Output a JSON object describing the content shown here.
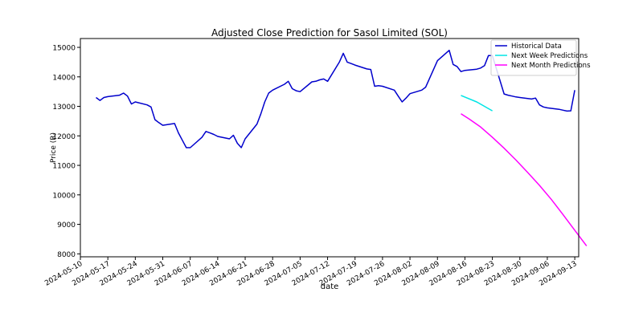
{
  "chart_data": {
    "type": "line",
    "title": "Adjusted Close Prediction for Sasol Limited (SOL)",
    "xlabel": "date",
    "ylabel": "Price (R)",
    "xlim": [
      "2024-05-10",
      "2024-09-14"
    ],
    "ylim": [
      7900,
      15300
    ],
    "x_ticks": [
      "2024-05-10",
      "2024-05-17",
      "2024-05-24",
      "2024-05-31",
      "2024-06-07",
      "2024-06-14",
      "2024-06-21",
      "2024-06-28",
      "2024-07-05",
      "2024-07-12",
      "2024-07-19",
      "2024-07-26",
      "2024-08-02",
      "2024-08-09",
      "2024-08-16",
      "2024-08-23",
      "2024-08-30",
      "2024-09-06",
      "2024-09-13"
    ],
    "y_ticks": [
      8000,
      9000,
      10000,
      11000,
      12000,
      13000,
      14000,
      15000
    ],
    "legend_position": "top-right",
    "grid": false,
    "series": [
      {
        "name": "Historical Data",
        "color": "#0000cc",
        "points": [
          [
            "2024-05-14",
            13300
          ],
          [
            "2024-05-15",
            13200
          ],
          [
            "2024-05-16",
            13300
          ],
          [
            "2024-05-17",
            13330
          ],
          [
            "2024-05-20",
            13380
          ],
          [
            "2024-05-21",
            13450
          ],
          [
            "2024-05-22",
            13350
          ],
          [
            "2024-05-23",
            13080
          ],
          [
            "2024-05-24",
            13150
          ],
          [
            "2024-05-27",
            13050
          ],
          [
            "2024-05-28",
            12980
          ],
          [
            "2024-05-29",
            12550
          ],
          [
            "2024-05-30",
            12450
          ],
          [
            "2024-05-31",
            12360
          ],
          [
            "2024-06-03",
            12420
          ],
          [
            "2024-06-04",
            12100
          ],
          [
            "2024-06-05",
            11850
          ],
          [
            "2024-06-06",
            11600
          ],
          [
            "2024-06-07",
            11600
          ],
          [
            "2024-06-10",
            11950
          ],
          [
            "2024-06-11",
            12150
          ],
          [
            "2024-06-12",
            12100
          ],
          [
            "2024-06-13",
            12050
          ],
          [
            "2024-06-14",
            11980
          ],
          [
            "2024-06-17",
            11900
          ],
          [
            "2024-06-18",
            12020
          ],
          [
            "2024-06-19",
            11750
          ],
          [
            "2024-06-20",
            11600
          ],
          [
            "2024-06-21",
            11900
          ],
          [
            "2024-06-24",
            12400
          ],
          [
            "2024-06-25",
            12750
          ],
          [
            "2024-06-26",
            13150
          ],
          [
            "2024-06-27",
            13450
          ],
          [
            "2024-06-28",
            13550
          ],
          [
            "2024-07-01",
            13750
          ],
          [
            "2024-07-02",
            13850
          ],
          [
            "2024-07-03",
            13600
          ],
          [
            "2024-07-04",
            13530
          ],
          [
            "2024-07-05",
            13500
          ],
          [
            "2024-07-08",
            13830
          ],
          [
            "2024-07-09",
            13850
          ],
          [
            "2024-07-10",
            13900
          ],
          [
            "2024-07-11",
            13930
          ],
          [
            "2024-07-12",
            13850
          ],
          [
            "2024-07-15",
            14500
          ],
          [
            "2024-07-16",
            14800
          ],
          [
            "2024-07-17",
            14500
          ],
          [
            "2024-07-18",
            14450
          ],
          [
            "2024-07-19",
            14400
          ],
          [
            "2024-07-22",
            14270
          ],
          [
            "2024-07-23",
            14250
          ],
          [
            "2024-07-24",
            13680
          ],
          [
            "2024-07-25",
            13700
          ],
          [
            "2024-07-26",
            13680
          ],
          [
            "2024-07-29",
            13550
          ],
          [
            "2024-07-30",
            13350
          ],
          [
            "2024-07-31",
            13150
          ],
          [
            "2024-08-01",
            13280
          ],
          [
            "2024-08-02",
            13430
          ],
          [
            "2024-08-05",
            13550
          ],
          [
            "2024-08-06",
            13650
          ],
          [
            "2024-08-07",
            13950
          ],
          [
            "2024-08-08",
            14250
          ],
          [
            "2024-08-09",
            14550
          ],
          [
            "2024-08-12",
            14900
          ],
          [
            "2024-08-13",
            14420
          ],
          [
            "2024-08-14",
            14350
          ],
          [
            "2024-08-15",
            14180
          ],
          [
            "2024-08-16",
            14220
          ],
          [
            "2024-08-19",
            14260
          ],
          [
            "2024-08-20",
            14300
          ],
          [
            "2024-08-21",
            14380
          ],
          [
            "2024-08-22",
            14720
          ],
          [
            "2024-08-23",
            14720
          ],
          [
            "2024-08-26",
            13420
          ],
          [
            "2024-08-27",
            13380
          ],
          [
            "2024-08-28",
            13350
          ],
          [
            "2024-08-29",
            13320
          ],
          [
            "2024-08-30",
            13300
          ],
          [
            "2024-09-02",
            13250
          ],
          [
            "2024-09-03",
            13280
          ],
          [
            "2024-09-04",
            13050
          ],
          [
            "2024-09-05",
            12980
          ],
          [
            "2024-09-06",
            12950
          ],
          [
            "2024-09-09",
            12900
          ],
          [
            "2024-09-10",
            12870
          ],
          [
            "2024-09-11",
            12840
          ],
          [
            "2024-09-12",
            12850
          ],
          [
            "2024-09-13",
            13550
          ]
        ]
      },
      {
        "name": "Next Week Predictions",
        "color": "#00e5e5",
        "points": [
          [
            "2024-08-15",
            13370
          ],
          [
            "2024-08-19",
            13150
          ],
          [
            "2024-08-23",
            12850
          ]
        ]
      },
      {
        "name": "Next Month Predictions",
        "color": "#ff00ff",
        "points": [
          [
            "2024-08-15",
            12750
          ],
          [
            "2024-08-17",
            12580
          ],
          [
            "2024-08-20",
            12300
          ],
          [
            "2024-08-23",
            11950
          ],
          [
            "2024-08-26",
            11580
          ],
          [
            "2024-08-29",
            11180
          ],
          [
            "2024-09-01",
            10760
          ],
          [
            "2024-09-04",
            10320
          ],
          [
            "2024-09-07",
            9850
          ],
          [
            "2024-09-10",
            9330
          ],
          [
            "2024-09-13",
            8800
          ],
          [
            "2024-09-16",
            8270
          ]
        ]
      }
    ]
  }
}
